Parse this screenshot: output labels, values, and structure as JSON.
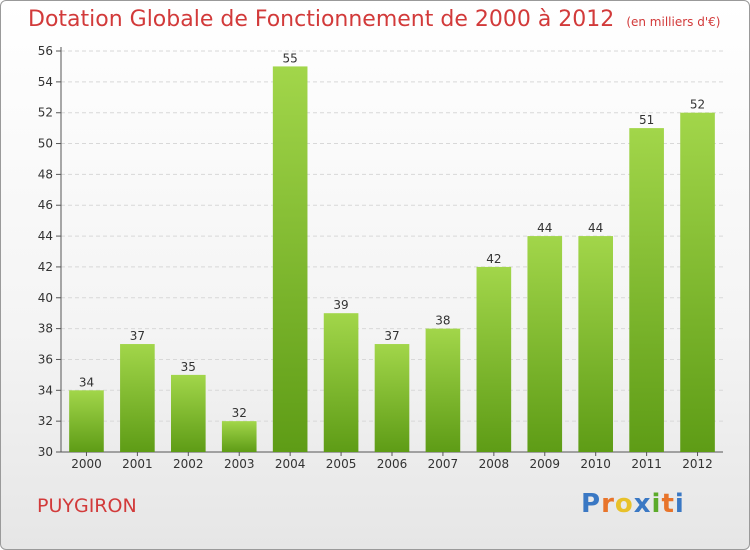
{
  "title": "Dotation Globale de Fonctionnement de 2000 à 2012",
  "unit": "(en milliers d'€)",
  "town": "PUYGIRON",
  "logo": {
    "letters": [
      "P",
      "r",
      "o",
      "x",
      "i",
      "t",
      "i"
    ],
    "colors": [
      "#3a78c4",
      "#e8742a",
      "#e8c12a",
      "#3a78c4",
      "#5cab2a",
      "#e8742a",
      "#3a78c4"
    ]
  },
  "colors": {
    "title": "#d23a3a",
    "bar_light": "#a2d64a",
    "bar_dark": "#5e9c16",
    "grid": "#d8d8d8"
  },
  "chart_data": {
    "type": "bar",
    "title": "Dotation Globale de Fonctionnement de 2000 à 2012",
    "ylabel": "(en milliers d'€)",
    "categories": [
      "2000",
      "2001",
      "2002",
      "2003",
      "2004",
      "2005",
      "2006",
      "2007",
      "2008",
      "2009",
      "2010",
      "2011",
      "2012"
    ],
    "values": [
      34,
      37,
      35,
      32,
      55,
      39,
      37,
      38,
      42,
      44,
      44,
      51,
      52
    ],
    "ylim": [
      30,
      56
    ],
    "yticks": [
      30,
      32,
      34,
      36,
      38,
      40,
      42,
      44,
      46,
      48,
      50,
      52,
      54,
      56
    ],
    "grid": true,
    "legend": "none"
  }
}
